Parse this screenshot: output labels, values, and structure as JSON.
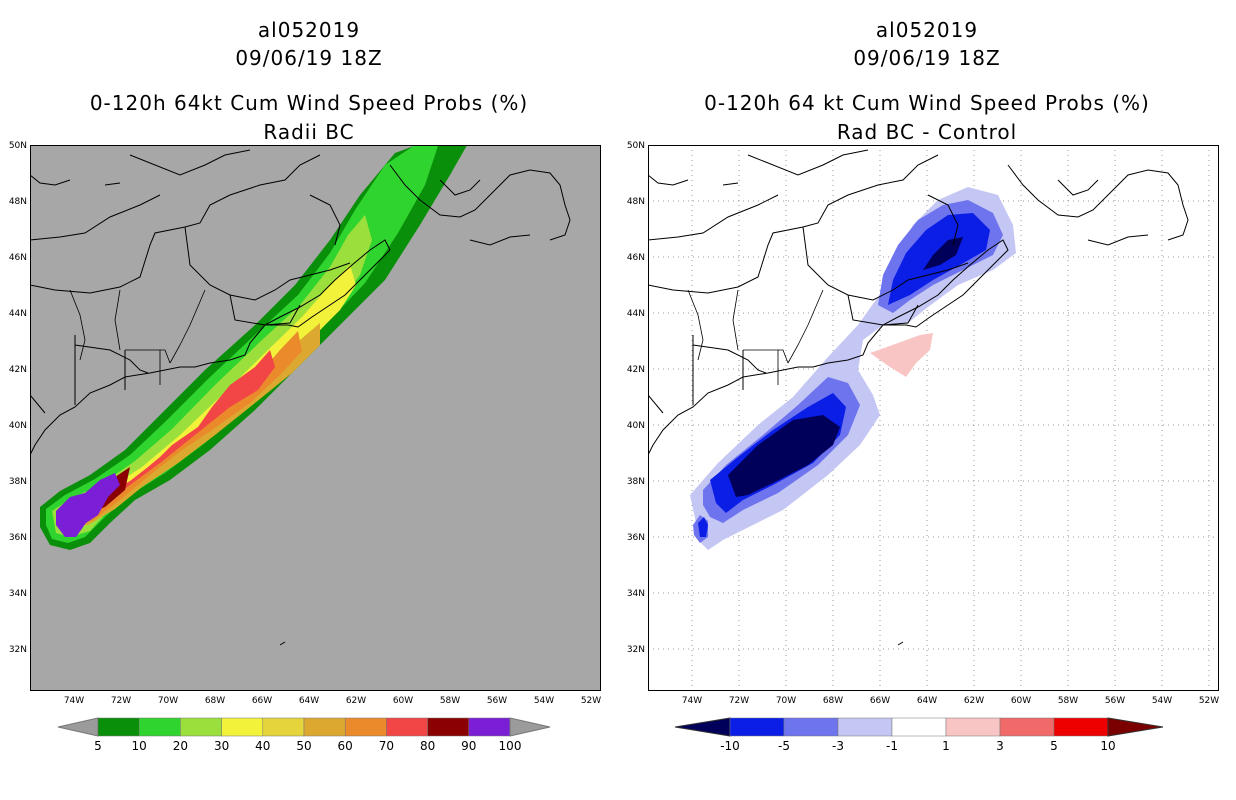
{
  "left_panel": {
    "storm_id": "al052019",
    "date": "09/06/19 18Z",
    "title": "0-120h 64kt Cum Wind Speed Probs (%)",
    "subtitle": "Radii BC",
    "colorbar": {
      "labels": [
        "5",
        "10",
        "20",
        "30",
        "40",
        "50",
        "60",
        "70",
        "80",
        "90",
        "100"
      ],
      "colors": [
        "#0a8f0a",
        "#2fd42f",
        "#9bdf3c",
        "#f2f23a",
        "#e5d43c",
        "#dca830",
        "#ea8a2a",
        "#f24646",
        "#8b0000",
        "#7a1fd6",
        "#9b9b9b"
      ]
    }
  },
  "right_panel": {
    "storm_id": "al052019",
    "date": "09/06/19 18Z",
    "title": "0-120h 64 kt Cum Wind Speed Probs (%)",
    "subtitle": "Rad BC - Control",
    "colorbar": {
      "labels": [
        "-10",
        "-5",
        "-3",
        "-1",
        "1",
        "3",
        "5",
        "10"
      ],
      "colors": [
        "#00005a",
        "#0a1ee6",
        "#6e73ee",
        "#c4c6f4",
        "#ffffff",
        "#f9c4c4",
        "#f06a6a",
        "#ee0000",
        "#7a0000"
      ]
    }
  },
  "axes": {
    "lat_ticks": [
      "50N",
      "48N",
      "46N",
      "44N",
      "42N",
      "40N",
      "38N",
      "36N",
      "34N",
      "32N"
    ],
    "lon_ticks": [
      "74W",
      "72W",
      "70W",
      "68W",
      "66W",
      "64W",
      "62W",
      "60W",
      "58W",
      "56W",
      "54W",
      "52W"
    ]
  }
}
